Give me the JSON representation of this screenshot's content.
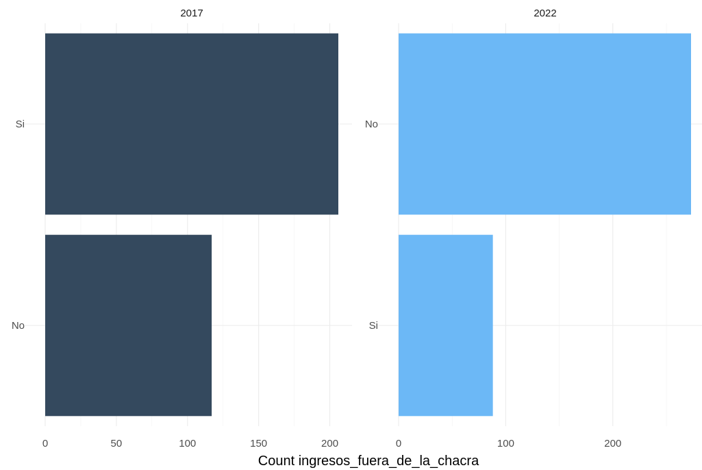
{
  "chart_data": {
    "type": "bar",
    "orientation": "horizontal",
    "xlabel": "Count ingresos_fuera_de_la_chacra",
    "grid": true,
    "panels": [
      {
        "title": "2017",
        "categories": [
          "Si",
          "No"
        ],
        "values": [
          206,
          117
        ],
        "xlim": [
          0,
          206
        ],
        "xticks": [
          0,
          50,
          100,
          150,
          200
        ],
        "color": "#34495e"
      },
      {
        "title": "2022",
        "categories": [
          "No",
          "Si"
        ],
        "values": [
          273,
          88
        ],
        "xlim": [
          0,
          273
        ],
        "xticks": [
          0,
          100,
          200
        ],
        "color": "#6cb8f6"
      }
    ]
  }
}
